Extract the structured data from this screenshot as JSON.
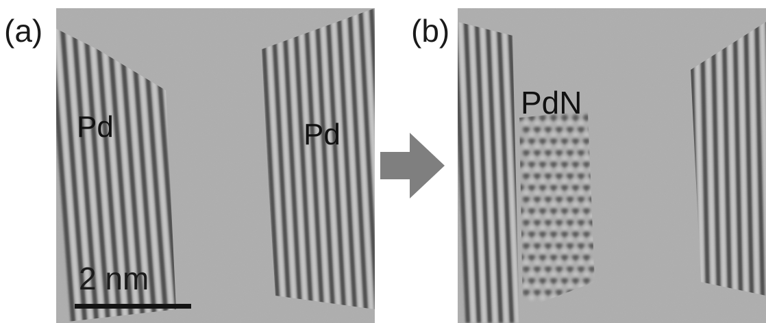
{
  "figure": {
    "panel_a": {
      "label": "(a)",
      "regions": [
        {
          "label": "Pd"
        },
        {
          "label": "Pd"
        }
      ],
      "scale_bar": {
        "text": "2 nm"
      }
    },
    "panel_b": {
      "label": "(b)",
      "regions": [
        {
          "label": "PdN"
        }
      ]
    },
    "arrow": {
      "direction": "right",
      "color": "#7f7f7f"
    },
    "colors": {
      "background": "#ffffff",
      "image_gray": "#a9a9a9",
      "lattice_dark": "#3c3c3c",
      "lattice_light": "#d2d2d2"
    }
  }
}
